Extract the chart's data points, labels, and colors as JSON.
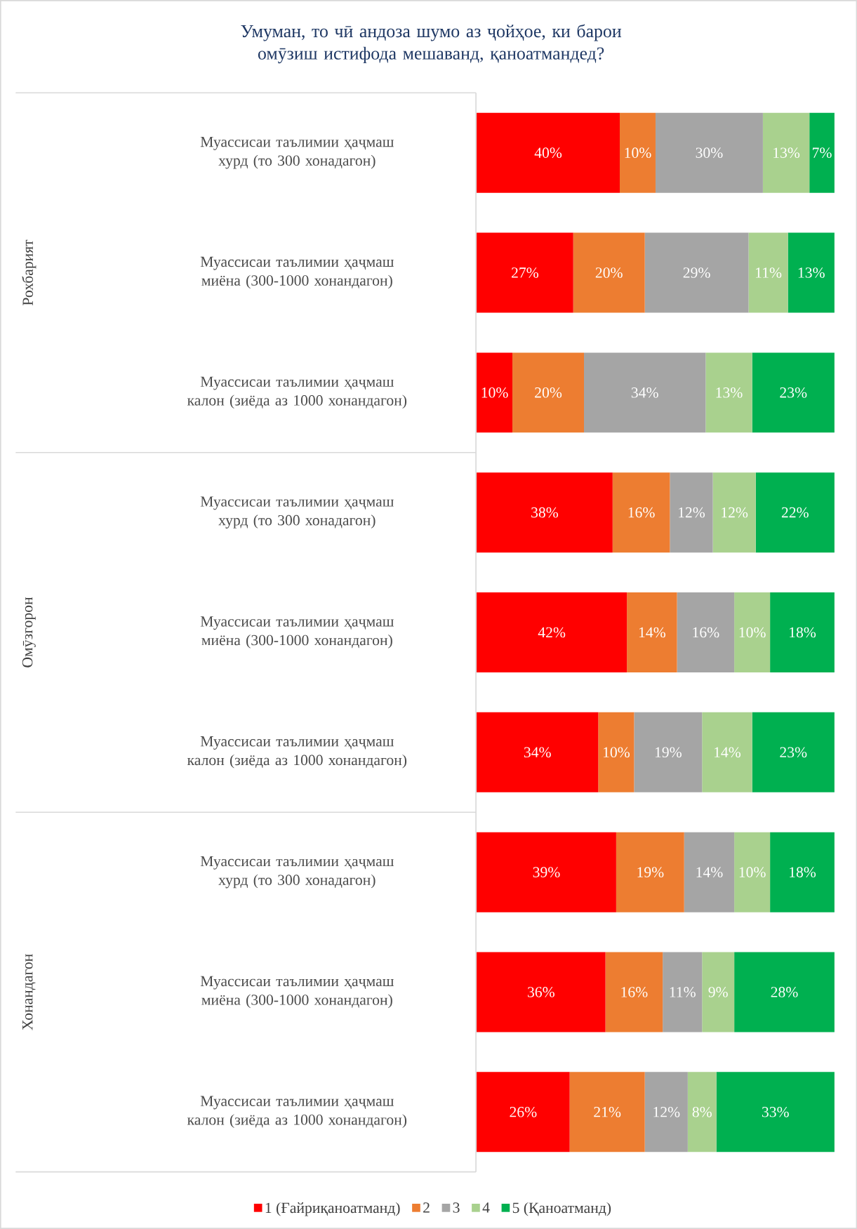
{
  "chart_data": {
    "type": "bar",
    "orientation": "horizontal",
    "stacked": true,
    "title": "Умуман, то чӣ андоза шумо аз ҷойҳое, ки барои омӯзиш истифода мешаванд, қаноатмандед?",
    "categories": [
      "Муассисаи таълимии ҳаҷмаш хурд (то 300 хонадагон)",
      "Муассисаи таълимии ҳаҷмаш миёна (300-1000 хонандагон)",
      "Муассисаи таълимии ҳаҷмаш калон (зиёда аз 1000 хонандагон)",
      "Муассисаи таълимии ҳаҷмаш хурд (то 300 хонадагон)",
      "Муассисаи таълимии ҳаҷмаш миёна (300-1000 хонандагон)",
      "Муассисаи таълимии ҳаҷмаш калон (зиёда аз 1000 хонандагон)",
      "Муассисаи таълимии ҳаҷмаш хурд (то 300 хонадагон)",
      "Муассисаи таълимии ҳаҷмаш миёна (300-1000 хонандагон)",
      "Муассисаи таълимии ҳаҷмаш калон (зиёда аз 1000 хонандагон)"
    ],
    "annotations": [
      "Рохбарият",
      "Омӯзгорон",
      "Хонандагон"
    ],
    "xlim": [
      0,
      100
    ],
    "tick_labels": "y",
    "legend": "bottom",
    "series": [
      {
        "name": "1 (Ғайриқаноатманд)",
        "color": "#ff0000",
        "values": [
          40,
          27,
          10,
          38,
          42,
          34,
          39,
          36,
          26
        ],
        "value_labels": [
          "40%",
          "27%",
          "10%",
          "38%",
          "42%",
          "34%",
          "39%",
          "36%",
          "26%"
        ]
      },
      {
        "name": "2",
        "color": "#ed7d31",
        "values": [
          10,
          20,
          20,
          16,
          14,
          10,
          19,
          16,
          21
        ],
        "value_labels": [
          "10%",
          "20%",
          "20%",
          "16%",
          "14%",
          "10%",
          "19%",
          "16%",
          "21%"
        ]
      },
      {
        "name": "3",
        "color": "#a5a5a5",
        "values": [
          30,
          29,
          34,
          12,
          16,
          19,
          14,
          11,
          12
        ],
        "value_labels": [
          "30%",
          "29%",
          "34%",
          "12%",
          "16%",
          "19%",
          "14%",
          "11%",
          "12%"
        ]
      },
      {
        "name": "4",
        "color": "#a9d18e",
        "values": [
          13,
          11,
          13,
          12,
          10,
          14,
          10,
          9,
          8
        ],
        "value_labels": [
          "13%",
          "11%",
          "13%",
          "12%",
          "10%",
          "14%",
          "10%",
          "9%",
          "8%"
        ]
      },
      {
        "name": "5 (Қаноатманд)",
        "color": "#00b050",
        "values": [
          7,
          13,
          23,
          22,
          18,
          23,
          18,
          28,
          33
        ],
        "value_labels": [
          "7%",
          "13%",
          "23%",
          "22%",
          "18%",
          "23%",
          "18%",
          "28%",
          "33%"
        ]
      }
    ]
  }
}
